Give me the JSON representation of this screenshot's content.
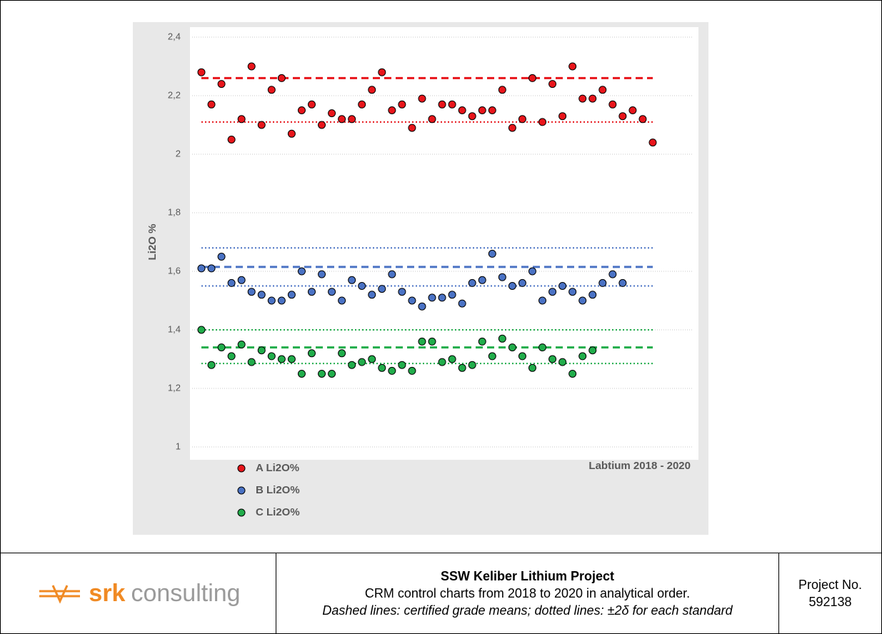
{
  "chart_data": {
    "type": "scatter",
    "y_label": "Li2O %",
    "annotation": "Labtium 2018 - 2020",
    "categories": [
      null,
      null,
      null,
      null,
      null,
      null,
      null,
      null,
      null,
      null,
      null,
      null,
      null,
      null,
      null,
      null,
      null,
      null,
      null,
      null,
      null,
      null,
      null,
      null,
      null,
      null,
      null,
      null,
      null,
      null,
      null,
      null,
      null,
      null,
      null,
      null,
      null,
      null,
      null,
      null,
      null,
      null,
      null,
      null,
      null,
      null
    ],
    "series": [
      {
        "name": "A Li2O%",
        "color": "#e8151b",
        "values": [
          2.28,
          2.17,
          2.24,
          2.05,
          2.12,
          2.3,
          2.1,
          2.22,
          2.26,
          2.07,
          2.15,
          2.17,
          2.1,
          2.14,
          2.12,
          2.12,
          2.17,
          2.22,
          2.28,
          2.15,
          2.17,
          2.09,
          2.19,
          2.12,
          2.17,
          2.17,
          2.15,
          2.13,
          2.15,
          2.15,
          2.22,
          2.09,
          2.12,
          2.26,
          2.11,
          2.24,
          2.13,
          2.3,
          2.19,
          2.19,
          2.22,
          2.17,
          2.13,
          2.15,
          2.12,
          2.04
        ]
      },
      {
        "name": "B Li2O%",
        "color": "#4a72c4",
        "values": [
          1.61,
          1.61,
          1.65,
          1.56,
          1.57,
          1.53,
          1.52,
          1.5,
          1.5,
          1.52,
          1.6,
          1.53,
          1.59,
          1.53,
          1.5,
          1.57,
          1.55,
          1.52,
          1.54,
          1.59,
          1.53,
          1.5,
          1.48,
          1.51,
          1.51,
          1.52,
          1.49,
          1.56,
          1.57,
          1.66,
          1.58,
          1.55,
          1.56,
          1.6,
          1.5,
          1.53,
          1.55,
          1.53,
          1.5,
          1.52,
          1.56,
          1.59,
          1.56,
          null,
          null,
          null
        ]
      },
      {
        "name": "C Li2O%",
        "color": "#21ad4b",
        "values": [
          1.4,
          1.28,
          1.34,
          1.31,
          1.35,
          1.29,
          1.33,
          1.31,
          1.3,
          1.3,
          1.25,
          1.32,
          1.25,
          1.25,
          1.32,
          1.28,
          1.29,
          1.3,
          1.27,
          1.26,
          1.28,
          1.26,
          1.36,
          1.36,
          1.29,
          1.3,
          1.27,
          1.28,
          1.36,
          1.31,
          1.37,
          1.34,
          1.31,
          1.27,
          1.34,
          1.3,
          1.29,
          1.25,
          1.31,
          1.33,
          null,
          null,
          null,
          null,
          null,
          null
        ]
      }
    ],
    "reference_lines": [
      {
        "value": 2.26,
        "style": "dashed",
        "color": "#e8151b"
      },
      {
        "value": 2.11,
        "style": "dotted",
        "color": "#e8151b"
      },
      {
        "value": 1.68,
        "style": "dotted",
        "color": "#4a72c4"
      },
      {
        "value": 1.615,
        "style": "dashed",
        "color": "#4a72c4"
      },
      {
        "value": 1.55,
        "style": "dotted",
        "color": "#4a72c4"
      },
      {
        "value": 1.4,
        "style": "dotted",
        "color": "#21ad4b"
      },
      {
        "value": 1.34,
        "style": "dashed",
        "color": "#21ad4b"
      },
      {
        "value": 1.285,
        "style": "dotted",
        "color": "#21ad4b"
      }
    ],
    "ylim": [
      1,
      2.4
    ],
    "yticks": [
      1,
      {
        "value": 1.2,
        "label": "1,2"
      },
      {
        "value": 1.4,
        "label": "1,4"
      },
      {
        "value": 1.6,
        "label": "1,6"
      },
      {
        "value": 1.8,
        "label": "1,8"
      },
      2,
      {
        "value": 2.2,
        "label": "2,2"
      },
      {
        "value": 2.4,
        "label": "2,4"
      }
    ],
    "grid": true,
    "legend": "lower left"
  },
  "footer": {
    "logo": {
      "brand": "srk",
      "tagline": "consulting"
    },
    "title": "SSW Keliber Lithium Project",
    "line1": "CRM control charts from 2018 to 2020 in analytical order.",
    "line2": "Dashed lines: certified grade means; dotted lines: ±2δ for each standard",
    "project_label": "Project No.",
    "project_number": "592138"
  }
}
